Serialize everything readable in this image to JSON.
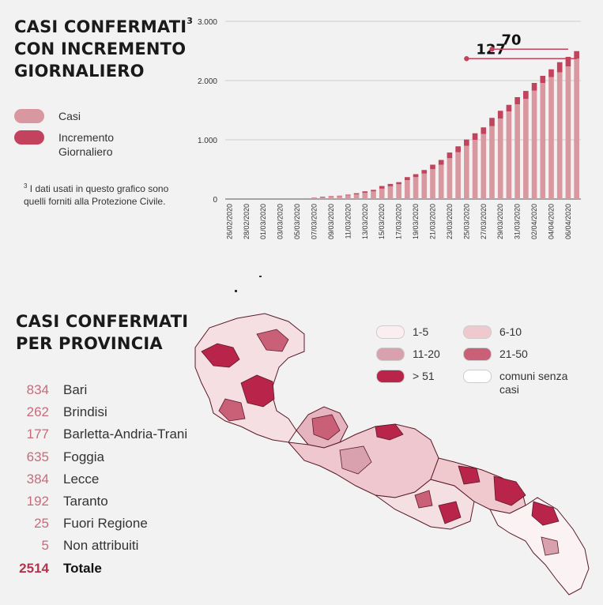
{
  "chart_title": {
    "main": "CASI CONFERMATI",
    "sup": "3",
    "rest": "CON INCREMENTO GIORNALIERO"
  },
  "legend": {
    "casi": {
      "label": "Casi",
      "color": "#d9979f"
    },
    "incremento": {
      "label": "Incremento Giornaliero",
      "color": "#c3425e"
    }
  },
  "note": {
    "sup": "3",
    "text": "I dati usati in questo grafico sono quelli forniti alla Protezione Civile."
  },
  "chart_data": {
    "type": "bar",
    "ylim": [
      0,
      3000
    ],
    "yticks": [
      0,
      1000,
      2000,
      3000
    ],
    "ytick_labels": [
      "0",
      "1.000",
      "2.000",
      "3.000"
    ],
    "categories": [
      "26/02/2020",
      "27/02/2020",
      "28/02/2020",
      "29/02/2020",
      "01/03/2020",
      "02/03/2020",
      "03/03/2020",
      "04/03/2020",
      "05/03/2020",
      "06/03/2020",
      "07/03/2020",
      "08/03/2020",
      "09/03/2020",
      "10/03/2020",
      "11/03/2020",
      "12/03/2020",
      "13/03/2020",
      "14/03/2020",
      "15/03/2020",
      "16/03/2020",
      "17/03/2020",
      "18/03/2020",
      "19/03/2020",
      "20/03/2020",
      "21/03/2020",
      "22/03/2020",
      "23/03/2020",
      "24/03/2020",
      "25/03/2020",
      "26/03/2020",
      "27/03/2020",
      "28/03/2020",
      "29/03/2020",
      "30/03/2020",
      "31/03/2020",
      "01/04/2020",
      "02/04/2020",
      "03/04/2020",
      "04/04/2020",
      "05/04/2020",
      "06/04/2020",
      "07/04/2020"
    ],
    "xtick_labels": [
      "26/02/2020",
      "28/02/2020",
      "01/03/2020",
      "03/03/2020",
      "05/03/2020",
      "07/03/2020",
      "09/03/2020",
      "11/03/2020",
      "13/03/2020",
      "15/03/2020",
      "17/03/2020",
      "19/03/2020",
      "21/03/2020",
      "23/03/2020",
      "25/03/2020",
      "27/03/2020",
      "29/03/2020",
      "31/03/2020",
      "02/04/2020",
      "04/04/2020",
      "06/04/2020"
    ],
    "series": [
      {
        "name": "Casi",
        "values": [
          0,
          0,
          0,
          0,
          0,
          0,
          0,
          0,
          6,
          10,
          18,
          30,
          40,
          48,
          62,
          80,
          105,
          130,
          175,
          215,
          250,
          320,
          370,
          430,
          505,
          580,
          690,
          790,
          900,
          1000,
          1100,
          1230,
          1360,
          1480,
          1600,
          1690,
          1830,
          1960,
          2060,
          2140,
          2240,
          2370
        ]
      },
      {
        "name": "Incremento Giornaliero",
        "values": [
          0,
          0,
          0,
          0,
          0,
          0,
          0,
          1,
          4,
          4,
          6,
          10,
          8,
          8,
          12,
          18,
          25,
          25,
          45,
          40,
          35,
          50,
          50,
          60,
          75,
          80,
          95,
          100,
          105,
          110,
          110,
          140,
          130,
          110,
          120,
          135,
          130,
          120,
          130,
          170,
          160,
          127
        ]
      }
    ],
    "annotations": [
      {
        "text": "127",
        "date": "25/03/2020"
      },
      {
        "text": "70",
        "date": "28/03/2020"
      }
    ]
  },
  "province": {
    "title": "CASI CONFERMATI PER PROVINCIA",
    "rows": [
      {
        "num": "834",
        "name": "Bari"
      },
      {
        "num": "262",
        "name": "Brindisi"
      },
      {
        "num": "177",
        "name": "Barletta-Andria-Trani"
      },
      {
        "num": "635",
        "name": "Foggia"
      },
      {
        "num": "384",
        "name": "Lecce"
      },
      {
        "num": "192",
        "name": "Taranto"
      },
      {
        "num": "25",
        "name": "Fuori Regione"
      },
      {
        "num": "5",
        "name": "Non attribuiti"
      },
      {
        "num": "2514",
        "name": "Totale"
      }
    ]
  },
  "map_legend": [
    {
      "label": "1-5",
      "color": "#fbeef0"
    },
    {
      "label": "6-10",
      "color": "#f0c9ce"
    },
    {
      "label": "11-20",
      "color": "#d9a0ae"
    },
    {
      "label": "21-50",
      "color": "#c96078"
    },
    {
      "label": "> 51",
      "color": "#b8244a"
    },
    {
      "label": "comuni senza casi",
      "color": "#ffffff"
    }
  ]
}
